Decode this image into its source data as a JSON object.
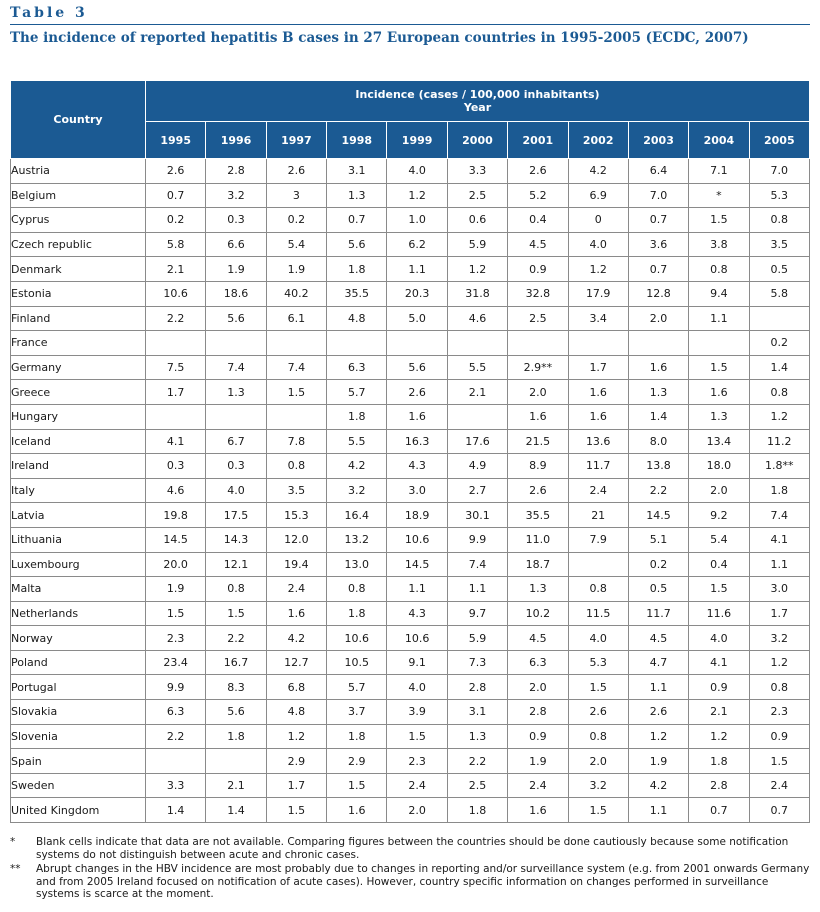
{
  "table_label": "Table 3",
  "title": "The incidence of reported hepatitis B cases in 27 European countries in 1995-2005 (ECDC, 2007)",
  "header": {
    "country": "Country",
    "incidence": "Incidence (cases / 100,000 inhabitants)",
    "year": "Year",
    "years": [
      "1995",
      "1996",
      "1997",
      "1998",
      "1999",
      "2000",
      "2001",
      "2002",
      "2003",
      "2004",
      "2005"
    ]
  },
  "rows": [
    {
      "country": "Austria",
      "values": [
        "2.6",
        "2.8",
        "2.6",
        "3.1",
        "4.0",
        "3.3",
        "2.6",
        "4.2",
        "6.4",
        "7.1",
        "7.0"
      ]
    },
    {
      "country": "Belgium",
      "values": [
        "0.7",
        "3.2",
        "3",
        "1.3",
        "1.2",
        "2.5",
        "5.2",
        "6.9",
        "7.0",
        "*",
        "5.3"
      ]
    },
    {
      "country": "Cyprus",
      "values": [
        "0.2",
        "0.3",
        "0.2",
        "0.7",
        "1.0",
        "0.6",
        "0.4",
        "0",
        "0.7",
        "1.5",
        "0.8"
      ]
    },
    {
      "country": "Czech republic",
      "values": [
        "5.8",
        "6.6",
        "5.4",
        "5.6",
        "6.2",
        "5.9",
        "4.5",
        "4.0",
        "3.6",
        "3.8",
        "3.5"
      ]
    },
    {
      "country": "Denmark",
      "values": [
        "2.1",
        "1.9",
        "1.9",
        "1.8",
        "1.1",
        "1.2",
        "0.9",
        "1.2",
        "0.7",
        "0.8",
        "0.5"
      ]
    },
    {
      "country": "Estonia",
      "values": [
        "10.6",
        "18.6",
        "40.2",
        "35.5",
        "20.3",
        "31.8",
        "32.8",
        "17.9",
        "12.8",
        "9.4",
        "5.8"
      ]
    },
    {
      "country": "Finland",
      "values": [
        "2.2",
        "5.6",
        "6.1",
        "4.8",
        "5.0",
        "4.6",
        "2.5",
        "3.4",
        "2.0",
        "1.1",
        ""
      ]
    },
    {
      "country": "France",
      "values": [
        "",
        "",
        "",
        "",
        "",
        "",
        "",
        "",
        "",
        "",
        "0.2"
      ]
    },
    {
      "country": "Germany",
      "values": [
        "7.5",
        "7.4",
        "7.4",
        "6.3",
        "5.6",
        "5.5",
        "2.9**",
        "1.7",
        "1.6",
        "1.5",
        "1.4"
      ]
    },
    {
      "country": "Greece",
      "values": [
        "1.7",
        "1.3",
        "1.5",
        "5.7",
        "2.6",
        "2.1",
        "2.0",
        "1.6",
        "1.3",
        "1.6",
        "0.8"
      ]
    },
    {
      "country": "Hungary",
      "values": [
        "",
        "",
        "",
        "1.8",
        "1.6",
        "",
        "1.6",
        "1.6",
        "1.4",
        "1.3",
        "1.2"
      ]
    },
    {
      "country": "Iceland",
      "values": [
        "4.1",
        "6.7",
        "7.8",
        "5.5",
        "16.3",
        "17.6",
        "21.5",
        "13.6",
        "8.0",
        "13.4",
        "11.2"
      ]
    },
    {
      "country": "Ireland",
      "values": [
        "0.3",
        "0.3",
        "0.8",
        "4.2",
        "4.3",
        "4.9",
        "8.9",
        "11.7",
        "13.8",
        "18.0",
        "1.8**"
      ]
    },
    {
      "country": "Italy",
      "values": [
        "4.6",
        "4.0",
        "3.5",
        "3.2",
        "3.0",
        "2.7",
        "2.6",
        "2.4",
        "2.2",
        "2.0",
        "1.8"
      ]
    },
    {
      "country": "Latvia",
      "values": [
        "19.8",
        "17.5",
        "15.3",
        "16.4",
        "18.9",
        "30.1",
        "35.5",
        "21",
        "14.5",
        "9.2",
        "7.4"
      ]
    },
    {
      "country": "Lithuania",
      "values": [
        "14.5",
        "14.3",
        "12.0",
        "13.2",
        "10.6",
        "9.9",
        "11.0",
        "7.9",
        "5.1",
        "5.4",
        "4.1"
      ]
    },
    {
      "country": "Luxembourg",
      "values": [
        "20.0",
        "12.1",
        "19.4",
        "13.0",
        "14.5",
        "7.4",
        "18.7",
        "",
        "0.2",
        "0.4",
        "1.1"
      ]
    },
    {
      "country": "Malta",
      "values": [
        "1.9",
        "0.8",
        "2.4",
        "0.8",
        "1.1",
        "1.1",
        "1.3",
        "0.8",
        "0.5",
        "1.5",
        "3.0"
      ]
    },
    {
      "country": "Netherlands",
      "values": [
        "1.5",
        "1.5",
        "1.6",
        "1.8",
        "4.3",
        "9.7",
        "10.2",
        "11.5",
        "11.7",
        "11.6",
        "1.7"
      ]
    },
    {
      "country": "Norway",
      "values": [
        "2.3",
        "2.2",
        "4.2",
        "10.6",
        "10.6",
        "5.9",
        "4.5",
        "4.0",
        "4.5",
        "4.0",
        "3.2"
      ]
    },
    {
      "country": "Poland",
      "values": [
        "23.4",
        "16.7",
        "12.7",
        "10.5",
        "9.1",
        "7.3",
        "6.3",
        "5.3",
        "4.7",
        "4.1",
        "1.2"
      ]
    },
    {
      "country": "Portugal",
      "values": [
        "9.9",
        "8.3",
        "6.8",
        "5.7",
        "4.0",
        "2.8",
        "2.0",
        "1.5",
        "1.1",
        "0.9",
        "0.8"
      ]
    },
    {
      "country": "Slovakia",
      "values": [
        "6.3",
        "5.6",
        "4.8",
        "3.7",
        "3.9",
        "3.1",
        "2.8",
        "2.6",
        "2.6",
        "2.1",
        "2.3"
      ]
    },
    {
      "country": "Slovenia",
      "values": [
        "2.2",
        "1.8",
        "1.2",
        "1.8",
        "1.5",
        "1.3",
        "0.9",
        "0.8",
        "1.2",
        "1.2",
        "0.9"
      ]
    },
    {
      "country": "Spain",
      "values": [
        "",
        "",
        "2.9",
        "2.9",
        "2.3",
        "2.2",
        "1.9",
        "2.0",
        "1.9",
        "1.8",
        "1.5"
      ]
    },
    {
      "country": "Sweden",
      "values": [
        "3.3",
        "2.1",
        "1.7",
        "1.5",
        "2.4",
        "2.5",
        "2.4",
        "3.2",
        "4.2",
        "2.8",
        "2.4"
      ]
    },
    {
      "country": "United Kingdom",
      "values": [
        "1.4",
        "1.4",
        "1.5",
        "1.6",
        "2.0",
        "1.8",
        "1.6",
        "1.5",
        "1.1",
        "0.7",
        "0.7"
      ]
    }
  ],
  "footnotes": [
    {
      "mark": "*",
      "text": "Blank cells indicate that data are not available. Comparing figures between the countries should be done cautiously because some notification systems do not distinguish between acute and chronic cases."
    },
    {
      "mark": "**",
      "text": "Abrupt changes in the HBV incidence are most probably due to changes in reporting and/or surveillance system (e.g. from 2001 onwards Germany and from 2005 Ireland focused on notification of acute cases). However, country specific information on changes performed in surveillance systems is scarce at the moment."
    }
  ],
  "colors": {
    "accent": "#1b5a93",
    "header_text": "#ffffff",
    "border": "#8a8a8a"
  }
}
